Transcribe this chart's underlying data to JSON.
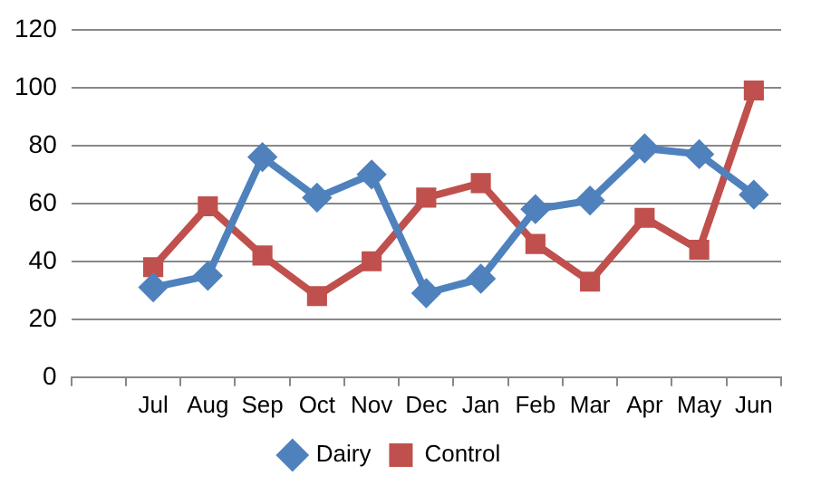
{
  "chart_data": {
    "type": "line",
    "categories": [
      null,
      "Jul",
      "Aug",
      "Sep",
      "Oct",
      "Nov",
      "Dec",
      "Jan",
      "Feb",
      "Mar",
      "Apr",
      "May",
      "Jun"
    ],
    "series": [
      {
        "name": "Dairy",
        "color": "#4f81bd",
        "marker": "diamond",
        "values": [
          null,
          31,
          35,
          76,
          62,
          70,
          29,
          34,
          58,
          61,
          79,
          77,
          63
        ]
      },
      {
        "name": "Control",
        "color": "#c0504d",
        "marker": "square",
        "values": [
          null,
          38,
          59,
          42,
          28,
          40,
          62,
          67,
          46,
          33,
          55,
          44,
          99
        ]
      }
    ],
    "ylim": [
      0,
      120
    ],
    "yticks": [
      0,
      20,
      40,
      60,
      80,
      100,
      120
    ],
    "grid": "y",
    "legend": "bottom",
    "line_style": "solid"
  }
}
